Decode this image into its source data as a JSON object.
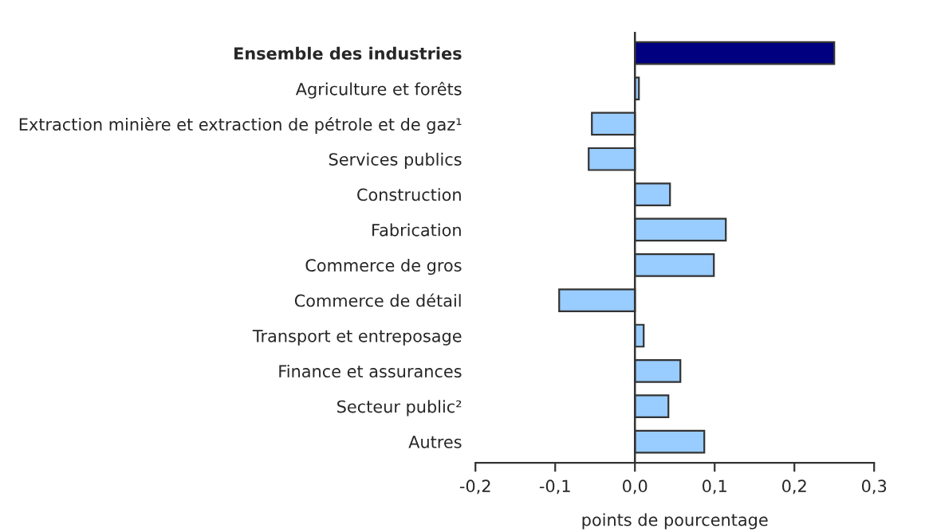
{
  "chart_data": {
    "type": "bar",
    "orientation": "horizontal",
    "categories": [
      "Ensemble des industries",
      "Agriculture et forêts",
      "Extraction minière et extraction de pétrole et de gaz¹",
      "Services publics",
      "Construction",
      "Fabrication",
      "Commerce de gros",
      "Commerce de détail",
      "Transport et entreposage",
      "Finance et assurances",
      "Secteur public²",
      "Autres"
    ],
    "values": [
      0.25,
      0.005,
      -0.054,
      -0.058,
      0.044,
      0.114,
      0.099,
      -0.095,
      0.011,
      0.057,
      0.042,
      0.087
    ],
    "colors": [
      "#000080",
      "#99ccff",
      "#99ccff",
      "#99ccff",
      "#99ccff",
      "#99ccff",
      "#99ccff",
      "#99ccff",
      "#99ccff",
      "#99ccff",
      "#99ccff",
      "#99ccff"
    ],
    "xlim": [
      -0.2,
      0.3
    ],
    "xticks": [
      {
        "value": -0.2,
        "label": "-0,2"
      },
      {
        "value": -0.1,
        "label": "-0,1"
      },
      {
        "value": 0,
        "label": "0,0"
      },
      {
        "value": 0.1,
        "label": "0,1"
      },
      {
        "value": 0.2,
        "label": "0,2"
      },
      {
        "value": 0.3,
        "label": "0,3"
      }
    ],
    "xlabel": "points de pourcentage",
    "legend": false
  }
}
